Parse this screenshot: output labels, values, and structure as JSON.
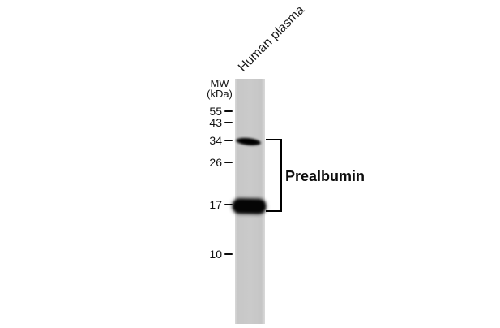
{
  "figure": {
    "type": "western-blot",
    "lane_label": "Human plasma",
    "mw_header": {
      "line1": "MW",
      "line2": "(kDa)"
    },
    "markers": [
      {
        "label": "55"
      },
      {
        "label": "43"
      },
      {
        "label": "34"
      },
      {
        "label": "26"
      },
      {
        "label": "17"
      },
      {
        "label": "10"
      }
    ],
    "bands": [
      {
        "kda": "34",
        "intensity": "moderate"
      },
      {
        "kda": "17",
        "intensity": "strong"
      }
    ],
    "annotation_label": "Prealbumin",
    "colors": {
      "background": "#ffffff",
      "lane": "#c8c8c8",
      "band": "#0a0a0a",
      "text": "#111111"
    }
  }
}
